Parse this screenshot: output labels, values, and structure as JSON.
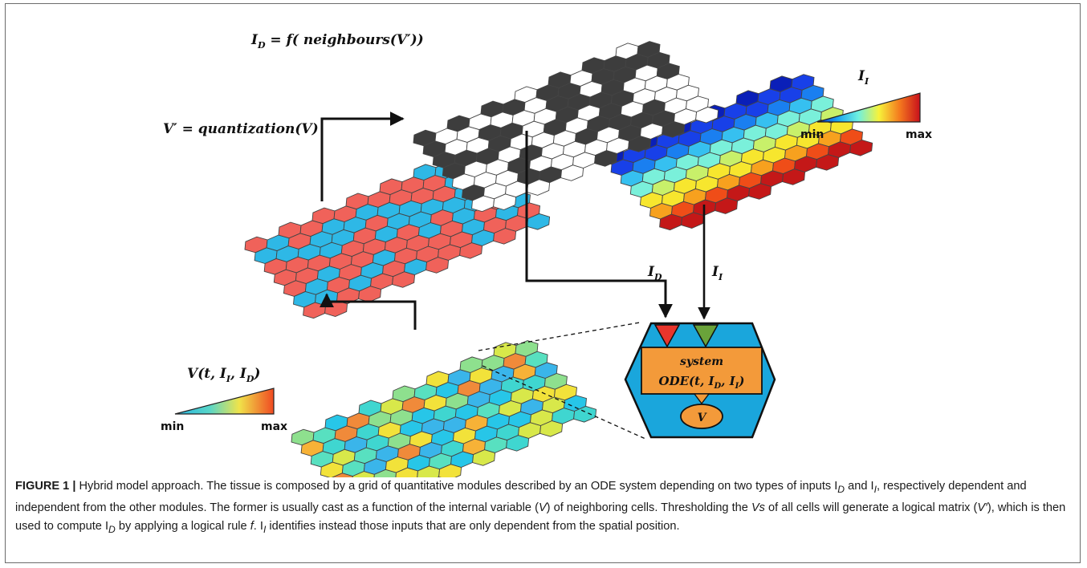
{
  "labels": {
    "id_formula_main": "I",
    "id_formula_sub": "D",
    "id_formula_rest": " = f( neighbours(V′))",
    "vprime_formula": "V′ = quantization(V)",
    "v_formula_main": "V(t, I",
    "v_formula_sub1": "I",
    "v_formula_mid": ", I",
    "v_formula_sub2": "D",
    "v_formula_end": ")",
    "ii_scale_main": "I",
    "ii_scale_sub": "I",
    "arrow_id_main": "I",
    "arrow_id_sub": "D",
    "arrow_ii_main": "I",
    "arrow_ii_sub": "I",
    "scale_min": "min",
    "scale_max": "max",
    "ode_line1": "system",
    "ode_line2_main": "ODE(t, I",
    "ode_line2_sub1": "D",
    "ode_line2_mid": ", I",
    "ode_line2_sub2": "I",
    "ode_line2_end": ")",
    "ode_output": "V"
  },
  "colors": {
    "blue_cell": "#2eb8e6",
    "red_cell": "#f0625a",
    "dark_cell": "#3d3d3d",
    "white_cell": "#ffffff",
    "module_hex": "#1aa6dc",
    "ode_box": "#f39a3a",
    "input_red": "#e8352c",
    "input_green": "#6aa33a"
  },
  "caption": {
    "label": "FIGURE 1 |",
    "text": " Hybrid model approach. The tissue is composed by a grid of quantitative modules described by an ODE system depending on two types of inputs I",
    "t1_sub": "D",
    "t2": " and I",
    "t2_sub": "I",
    "t3": ", respectively dependent and independent from the other modules. The former is usually cast as a function of the internal variable (",
    "t3_v": "V",
    "t4": ") of neighboring cells. Thresholding the ",
    "t4_vs": "Vs",
    "t5": " of all cells will generate a logical matrix (",
    "t5_vp": "V′",
    "t6": "), which is then used to compute I",
    "t6_sub": "D",
    "t7": " by applying a logical rule ",
    "t7_f": "f",
    "t8": ". I",
    "t8_sub": "I",
    "t9": " identifies instead those inputs that are only dependent from the spatial position."
  }
}
